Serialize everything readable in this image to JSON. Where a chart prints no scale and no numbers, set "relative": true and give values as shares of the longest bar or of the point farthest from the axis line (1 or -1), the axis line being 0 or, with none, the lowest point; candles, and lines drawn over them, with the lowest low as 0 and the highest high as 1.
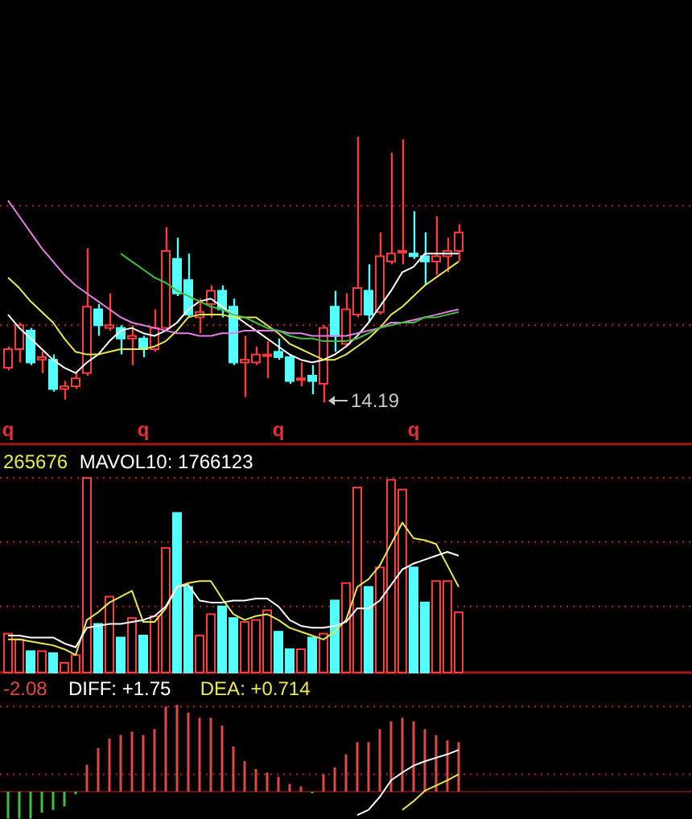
{
  "chart_data": [
    {
      "type": "candlestick",
      "relative": true,
      "tick_labels": "x",
      "categories": [
        "q",
        null,
        null,
        null,
        null,
        null,
        null,
        null,
        null,
        null,
        null,
        null,
        "q",
        null,
        null,
        null,
        null,
        null,
        null,
        null,
        null,
        null,
        null,
        null,
        "q",
        null,
        null,
        null,
        null,
        null,
        null,
        null,
        null,
        null,
        null,
        null,
        "q",
        null,
        null,
        null,
        null
      ],
      "ohlc": [
        [
          0.13,
          0.21,
          0.12,
          0.2
        ],
        [
          0.2,
          0.3,
          0.15,
          0.29
        ],
        [
          0.27,
          0.28,
          0.14,
          0.15
        ],
        [
          0.16,
          0.19,
          0.11,
          0.17
        ],
        [
          0.16,
          0.18,
          0.04,
          0.05
        ],
        [
          0.05,
          0.08,
          0.01,
          0.06
        ],
        [
          0.06,
          0.11,
          0.05,
          0.09
        ],
        [
          0.11,
          0.58,
          0.1,
          0.36
        ],
        [
          0.35,
          0.37,
          0.25,
          0.29
        ],
        [
          0.28,
          0.41,
          0.27,
          0.29
        ],
        [
          0.28,
          0.29,
          0.18,
          0.24
        ],
        [
          0.24,
          0.29,
          0.14,
          0.25
        ],
        [
          0.24,
          0.25,
          0.17,
          0.2
        ],
        [
          0.2,
          0.35,
          0.19,
          0.28
        ],
        [
          0.28,
          0.66,
          0.27,
          0.57
        ],
        [
          0.54,
          0.62,
          0.4,
          0.41
        ],
        [
          0.46,
          0.56,
          0.32,
          0.33
        ],
        [
          0.32,
          0.39,
          0.26,
          0.34
        ],
        [
          0.37,
          0.44,
          0.32,
          0.42
        ],
        [
          0.42,
          0.44,
          0.32,
          0.35
        ],
        [
          0.36,
          0.39,
          0.14,
          0.15
        ],
        [
          0.15,
          0.25,
          0.02,
          0.16
        ],
        [
          0.15,
          0.21,
          0.14,
          0.18
        ],
        [
          0.18,
          0.23,
          0.09,
          0.18
        ],
        [
          0.19,
          0.24,
          0.16,
          0.17
        ],
        [
          0.17,
          0.18,
          0.07,
          0.08
        ],
        [
          0.09,
          0.15,
          0.06,
          0.09
        ],
        [
          0.1,
          0.14,
          0.03,
          0.08
        ],
        [
          0.07,
          0.29,
          0,
          0.28
        ],
        [
          0.36,
          0.42,
          0.19,
          0.25
        ],
        [
          0.22,
          0.41,
          0.21,
          0.35
        ],
        [
          0.33,
          1,
          0.32,
          0.43
        ],
        [
          0.42,
          0.52,
          0.3,
          0.33
        ],
        [
          0.34,
          0.64,
          0.33,
          0.55
        ],
        [
          0.53,
          0.94,
          0.52,
          0.56
        ],
        [
          0.57,
          0.99,
          0.52,
          0.57
        ],
        [
          0.56,
          0.72,
          0.54,
          0.55
        ],
        [
          0.55,
          0.64,
          0.44,
          0.53
        ],
        [
          0.53,
          0.7,
          0.48,
          0.55
        ],
        [
          0.55,
          0.62,
          0.49,
          0.57
        ],
        [
          0.57,
          0.67,
          0.53,
          0.64
        ]
      ],
      "colors": [
        "#ff3c3c",
        "#ff3c3c",
        "#54ffff",
        "#ff3c3c",
        "#54ffff",
        "#ff3c3c",
        "#ff3c3c",
        "#ff3c3c",
        "#54ffff",
        "#ff3c3c",
        "#54ffff",
        "#ff3c3c",
        "#54ffff",
        "#ff3c3c",
        "#ff3c3c",
        "#54ffff",
        "#54ffff",
        "#ff3c3c",
        "#ff3c3c",
        "#54ffff",
        "#54ffff",
        "#ff3c3c",
        "#ff3c3c",
        "#ff3c3c",
        "#54ffff",
        "#54ffff",
        "#ff3c3c",
        "#54ffff",
        "#ff3c3c",
        "#54ffff",
        "#ff3c3c",
        "#ff3c3c",
        "#54ffff",
        "#ff3c3c",
        "#ff3c3c",
        "#ff3c3c",
        "#54ffff",
        "#54ffff",
        "#ff3c3c",
        "#ff3c3c",
        "#ff3c3c"
      ],
      "series": [
        {
          "type": "line",
          "color": "#ffffff",
          "values": [
            0.33,
            0.28,
            0.24,
            0.2,
            0.16,
            0.13,
            0.11,
            0.15,
            0.18,
            0.23,
            0.27,
            0.28,
            0.26,
            0.25,
            0.27,
            0.3,
            0.35,
            0.38,
            0.39,
            0.36,
            0.33,
            0.3,
            0.27,
            0.24,
            0.21,
            0.18,
            0.16,
            0.15,
            0.16,
            0.18,
            0.21,
            0.25,
            0.3,
            0.36,
            0.42,
            0.49,
            0.51,
            0.56,
            0.56,
            0.56,
            0.56
          ]
        },
        {
          "type": "line",
          "color": "#e8e850",
          "values": [
            0.47,
            0.43,
            0.38,
            0.34,
            0.3,
            0.24,
            0.19,
            0.18,
            0.18,
            0.19,
            0.2,
            0.2,
            0.2,
            0.21,
            0.23,
            0.27,
            0.32,
            0.33,
            0.33,
            0.33,
            0.32,
            0.32,
            0.32,
            0.29,
            0.26,
            0.22,
            0.2,
            0.18,
            0.16,
            0.16,
            0.18,
            0.21,
            0.24,
            0.28,
            0.33,
            0.36,
            0.4,
            0.44,
            0.47,
            0.5,
            0.53
          ]
        },
        {
          "type": "line",
          "color": "#e080e0",
          "values": [
            0.76,
            0.7,
            0.64,
            0.58,
            0.53,
            0.48,
            0.44,
            0.41,
            0.38,
            0.35,
            0.32,
            0.3,
            0.29,
            0.28,
            0.27,
            0.26,
            0.26,
            0.25,
            0.25,
            0.26,
            0.26,
            0.27,
            0.27,
            0.27,
            0.27,
            0.26,
            0.26,
            0.25,
            0.25,
            0.25,
            0.25,
            0.26,
            0.27,
            0.28,
            0.3,
            0.3,
            0.31,
            0.32,
            0.33,
            0.34,
            0.35
          ]
        },
        {
          "type": "line",
          "color": "#40c040",
          "values": [
            null,
            null,
            null,
            null,
            null,
            null,
            null,
            null,
            null,
            null,
            0.56,
            0.53,
            0.5,
            0.47,
            0.45,
            0.42,
            0.4,
            0.38,
            0.36,
            0.35,
            0.33,
            0.32,
            0.3,
            0.28,
            0.27,
            0.25,
            0.24,
            0.24,
            0.23,
            0.23,
            0.23,
            0.24,
            0.26,
            0.28,
            0.29,
            0.3,
            0.3,
            0.32,
            0.32,
            0.33,
            0.34
          ]
        }
      ],
      "ref_lines": [
        {
          "axis": "y",
          "value": 0.74,
          "color": "#a02828",
          "line_style": "dotted"
        },
        {
          "axis": "y",
          "value": 0.29,
          "color": "#a02828",
          "line_style": "dotted"
        }
      ],
      "annotations": [
        "14.19"
      ]
    },
    {
      "type": "bar",
      "relative": true,
      "tick_labels": false,
      "legend": "top left",
      "categories": [
        null,
        null,
        null,
        null,
        null,
        null,
        null,
        null,
        null,
        null,
        null,
        null,
        null,
        null,
        null,
        null,
        null,
        null,
        null,
        null,
        null,
        null,
        null,
        null,
        null,
        null,
        null,
        null,
        null,
        null,
        null,
        null,
        null,
        null,
        null,
        null,
        null,
        null,
        null,
        null,
        null
      ],
      "series": [
        {
          "type": "bar",
          "values": [
            0.2,
            0.17,
            0.11,
            0.11,
            0.1,
            0.05,
            0.09,
            1,
            0.25,
            0.39,
            0.18,
            0.28,
            0.19,
            0.29,
            0.64,
            0.82,
            0.44,
            0.19,
            0.3,
            0.34,
            0.28,
            0.26,
            0.27,
            0.32,
            0.21,
            0.12,
            0.12,
            0.18,
            0.2,
            0.37,
            0.46,
            0.95,
            0.44,
            0.54,
            0.99,
            0.94,
            0.54,
            0.36,
            0.47,
            0.47,
            0.31
          ],
          "colors": [
            "#ff3c3c",
            "#ff3c3c",
            "#54ffff",
            "#ff3c3c",
            "#54ffff",
            "#ff3c3c",
            "#ff3c3c",
            "#ff3c3c",
            "#54ffff",
            "#ff3c3c",
            "#54ffff",
            "#ff3c3c",
            "#54ffff",
            "#ff3c3c",
            "#ff3c3c",
            "#54ffff",
            "#54ffff",
            "#ff3c3c",
            "#ff3c3c",
            "#54ffff",
            "#54ffff",
            "#ff3c3c",
            "#ff3c3c",
            "#ff3c3c",
            "#54ffff",
            "#54ffff",
            "#ff3c3c",
            "#54ffff",
            "#ff3c3c",
            "#54ffff",
            "#ff3c3c",
            "#ff3c3c",
            "#54ffff",
            "#ff3c3c",
            "#ff3c3c",
            "#ff3c3c",
            "#54ffff",
            "#54ffff",
            "#ff3c3c",
            "#ff3c3c",
            "#ff3c3c"
          ]
        },
        {
          "type": "line",
          "name": "265676",
          "color": "#e8e850",
          "values": [
            0.17,
            0.17,
            0.16,
            0.15,
            0.14,
            0.12,
            0.09,
            0.27,
            0.31,
            0.36,
            0.39,
            0.42,
            0.26,
            0.26,
            0.33,
            0.44,
            0.46,
            0.47,
            0.47,
            0.38,
            0.3,
            0.27,
            0.29,
            0.3,
            0.27,
            0.23,
            0.21,
            0.19,
            0.17,
            0.21,
            0.27,
            0.44,
            0.48,
            0.55,
            0.66,
            0.77,
            0.69,
            0.68,
            0.66,
            0.55,
            0.44
          ]
        },
        {
          "type": "line",
          "name": "MAVOL10: 1766123",
          "color": "#ffffff",
          "values": [
            0.19,
            0.19,
            0.18,
            0.18,
            0.18,
            0.15,
            0.13,
            0.23,
            0.24,
            0.25,
            0.25,
            0.26,
            0.27,
            0.29,
            0.34,
            0.44,
            0.45,
            0.37,
            0.36,
            0.36,
            0.37,
            0.37,
            0.38,
            0.38,
            0.34,
            0.27,
            0.24,
            0.23,
            0.23,
            0.24,
            0.26,
            0.33,
            0.33,
            0.37,
            0.45,
            0.53,
            0.56,
            0.58,
            0.6,
            0.62,
            0.6
          ]
        }
      ],
      "ref_lines": [
        {
          "axis": "y",
          "value": 1,
          "color": "#a02828",
          "line_style": "dotted"
        },
        {
          "axis": "y",
          "value": 0.67,
          "color": "#a02828",
          "line_style": "dotted"
        },
        {
          "axis": "y",
          "value": 0.34,
          "color": "#a02828",
          "line_style": "dotted"
        }
      ]
    },
    {
      "type": "bar",
      "relative": true,
      "tick_labels": false,
      "legend": "top left",
      "categories": [
        null,
        null,
        null,
        null,
        null,
        null,
        null,
        null,
        null,
        null,
        null,
        null,
        null,
        null,
        null,
        null,
        null,
        null,
        null,
        null,
        null,
        null,
        null,
        null,
        null,
        null,
        null,
        null,
        null,
        null,
        null,
        null,
        null,
        null,
        null,
        null,
        null,
        null,
        null,
        null,
        null
      ],
      "series": [
        {
          "type": "bar",
          "name": "-2.08",
          "color": "#e04848",
          "values": [
            -0.31,
            -0.31,
            -0.31,
            -0.24,
            -0.21,
            -0.17,
            -0.03,
            0.31,
            0.5,
            0.61,
            0.65,
            0.69,
            0.65,
            0.72,
            0.98,
            1,
            0.91,
            0.85,
            0.85,
            0.76,
            0.52,
            0.35,
            0.26,
            0.22,
            0.17,
            0.09,
            0.06,
            -0.02,
            0.2,
            0.28,
            0.43,
            0.57,
            0.57,
            0.72,
            0.81,
            0.85,
            0.81,
            0.72,
            0.65,
            0.59,
            0.57
          ],
          "colors": [
            "#40c040",
            "#40c040",
            "#40c040",
            "#40c040",
            "#40c040",
            "#40c040",
            "#40c040",
            "#e04848",
            "#e04848",
            "#e04848",
            "#e04848",
            "#e04848",
            "#e04848",
            "#e04848",
            "#e04848",
            "#e04848",
            "#e04848",
            "#e04848",
            "#e04848",
            "#e04848",
            "#e04848",
            "#e04848",
            "#e04848",
            "#e04848",
            "#e04848",
            "#e04848",
            "#e04848",
            "#40c040",
            "#e04848",
            "#e04848",
            "#e04848",
            "#e04848",
            "#e04848",
            "#e04848",
            "#e04848",
            "#e04848",
            "#e04848",
            "#e04848",
            "#e04848",
            "#e04848",
            "#e04848"
          ]
        },
        {
          "type": "line",
          "name": "DIFF: +1.75",
          "color": "#ffffff",
          "values": [
            null,
            null,
            null,
            null,
            null,
            null,
            null,
            null,
            null,
            null,
            null,
            null,
            null,
            null,
            null,
            null,
            null,
            null,
            null,
            null,
            null,
            null,
            null,
            null,
            null,
            null,
            null,
            null,
            null,
            null,
            null,
            -0.27,
            -0.21,
            -0.06,
            0.13,
            0.22,
            0.3,
            0.35,
            0.39,
            0.43,
            0.48
          ]
        },
        {
          "type": "line",
          "name": "DEA: +0.714",
          "color": "#e8e850",
          "values": [
            null,
            null,
            null,
            null,
            null,
            null,
            null,
            null,
            null,
            null,
            null,
            null,
            null,
            null,
            null,
            null,
            null,
            null,
            null,
            null,
            null,
            null,
            null,
            null,
            null,
            null,
            null,
            null,
            null,
            null,
            null,
            null,
            null,
            null,
            null,
            -0.21,
            -0.11,
            0.01,
            0.07,
            0.13,
            0.2
          ]
        }
      ],
      "ref_lines": [
        {
          "axis": "y",
          "value": 0.98,
          "color": "#a02828",
          "line_style": "dotted"
        },
        {
          "axis": "y",
          "value": 0.2,
          "color": "#a02828",
          "line_style": "dotted"
        }
      ]
    }
  ]
}
